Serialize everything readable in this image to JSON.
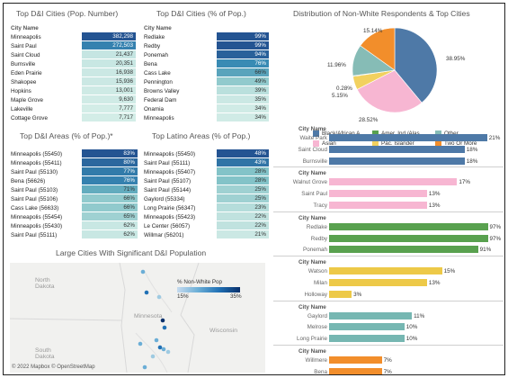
{
  "titles": {
    "t1": "Top D&I Cities (Pop. Number)",
    "t2": "Top D&I Cities (% of Pop.)",
    "t3": "Distribution of Non-White Respondents & Top Cities",
    "t4": "Top D&I Areas (% of Pop.)*",
    "t5": "Top Latino Areas (% of Pop.)",
    "t6": "Large Cities With Significant D&I Population"
  },
  "city_name_header": "City Name",
  "table_pop": {
    "rows": [
      {
        "name": "Minneapolis",
        "value": "382,298",
        "level": 1.0
      },
      {
        "name": "Saint Paul",
        "value": "272,503",
        "level": 0.72
      },
      {
        "name": "Saint Cloud",
        "value": "21,437",
        "level": 0.06
      },
      {
        "name": "Burnsville",
        "value": "20,351",
        "level": 0.05
      },
      {
        "name": "Eden Prairie",
        "value": "16,938",
        "level": 0.04
      },
      {
        "name": "Shakopee",
        "value": "15,936",
        "level": 0.04
      },
      {
        "name": "Hopkins",
        "value": "13,001",
        "level": 0.03
      },
      {
        "name": "Maple Grove",
        "value": "9,630",
        "level": 0.02
      },
      {
        "name": "Lakeville",
        "value": "7,777",
        "level": 0.01
      },
      {
        "name": "Cottage Grove",
        "value": "7,717",
        "level": 0.01
      }
    ]
  },
  "table_pct": {
    "rows": [
      {
        "name": "Redlake",
        "value": "99%",
        "level": 1.0
      },
      {
        "name": "Redby",
        "value": "99%",
        "level": 1.0
      },
      {
        "name": "Ponemah",
        "value": "94%",
        "level": 0.92
      },
      {
        "name": "Bena",
        "value": "76%",
        "level": 0.66
      },
      {
        "name": "Cass Lake",
        "value": "66%",
        "level": 0.5
      },
      {
        "name": "Pennington",
        "value": "49%",
        "level": 0.25
      },
      {
        "name": "Browns Valley",
        "value": "39%",
        "level": 0.1
      },
      {
        "name": "Federal Dam",
        "value": "35%",
        "level": 0.04
      },
      {
        "name": "Onamia",
        "value": "34%",
        "level": 0.02
      },
      {
        "name": "Minneapolis",
        "value": "34%",
        "level": 0.02
      }
    ]
  },
  "table_areas": {
    "rows": [
      {
        "name": "Minneapolis (55450)",
        "value": "83%",
        "level": 1.0
      },
      {
        "name": "Minneapolis (55411)",
        "value": "80%",
        "level": 0.88
      },
      {
        "name": "Saint Paul (55130)",
        "value": "77%",
        "level": 0.76
      },
      {
        "name": "Bena (56626)",
        "value": "76%",
        "level": 0.72
      },
      {
        "name": "Saint Paul (55103)",
        "value": "71%",
        "level": 0.45
      },
      {
        "name": "Saint Paul (55106)",
        "value": "66%",
        "level": 0.25
      },
      {
        "name": "Cass Lake (56633)",
        "value": "66%",
        "level": 0.25
      },
      {
        "name": "Minneapolis (55454)",
        "value": "65%",
        "level": 0.2
      },
      {
        "name": "Minneapolis (55430)",
        "value": "62%",
        "level": 0.05
      },
      {
        "name": "Saint Paul (55111)",
        "value": "62%",
        "level": 0.05
      }
    ]
  },
  "table_latino": {
    "rows": [
      {
        "name": "Minneapolis (55450)",
        "value": "48%",
        "level": 1.0
      },
      {
        "name": "Saint Paul (55111)",
        "value": "43%",
        "level": 0.8
      },
      {
        "name": "Minneapolis (55407)",
        "value": "28%",
        "level": 0.3
      },
      {
        "name": "Saint Paul (55107)",
        "value": "28%",
        "level": 0.3
      },
      {
        "name": "Saint Paul (55144)",
        "value": "25%",
        "level": 0.2
      },
      {
        "name": "Gaylord (55334)",
        "value": "25%",
        "level": 0.2
      },
      {
        "name": "Long Prairie (56347)",
        "value": "23%",
        "level": 0.12
      },
      {
        "name": "Minneapolis (55423)",
        "value": "22%",
        "level": 0.08
      },
      {
        "name": "Le Center (56057)",
        "value": "22%",
        "level": 0.08
      },
      {
        "name": "Willmar (56201)",
        "value": "21%",
        "level": 0.04
      }
    ]
  },
  "pie": {
    "slices": [
      {
        "label": "38.95%",
        "value": 38.95,
        "color": "#4e79a7"
      },
      {
        "label": "28.52%",
        "value": 28.52,
        "color": "#f7b6d2"
      },
      {
        "label": "5.15%",
        "value": 5.15,
        "color": "#f2d15f"
      },
      {
        "label": "0.28%",
        "value": 0.28,
        "color": "#6a9f4b"
      },
      {
        "label": "11.96%",
        "value": 11.96,
        "color": "#86bcb6"
      },
      {
        "label": "15.14%",
        "value": 15.14,
        "color": "#f28e2b"
      }
    ]
  },
  "legend": [
    {
      "label": "Black/African A..",
      "color": "#4e79a7"
    },
    {
      "label": "Amer. Ind./Alas..",
      "color": "#59a14f"
    },
    {
      "label": "Other",
      "color": "#86bcb6"
    },
    {
      "label": "Asian",
      "color": "#f7b6d2"
    },
    {
      "label": "Pac. Islander",
      "color": "#f2d15f"
    },
    {
      "label": "Two Or More",
      "color": "#f28e2b"
    }
  ],
  "bar_groups": [
    {
      "color": "#4e79a7",
      "rows": [
        {
          "name": "Waite Park",
          "value": 21,
          "label": "21%"
        },
        {
          "name": "Saint Cloud",
          "value": 18,
          "label": "18%"
        },
        {
          "name": "Burnsville",
          "value": 18,
          "label": "18%"
        }
      ]
    },
    {
      "color": "#f7b6d2",
      "rows": [
        {
          "name": "Walnut Grove",
          "value": 17,
          "label": "17%"
        },
        {
          "name": "Saint Paul",
          "value": 13,
          "label": "13%"
        },
        {
          "name": "Tracy",
          "value": 13,
          "label": "13%"
        }
      ]
    },
    {
      "color": "#59a14f",
      "rows": [
        {
          "name": "Redlake",
          "value": 97,
          "label": "97%"
        },
        {
          "name": "Redby",
          "value": 97,
          "label": "97%"
        },
        {
          "name": "Ponemah",
          "value": 91,
          "label": "91%"
        }
      ]
    },
    {
      "color": "#edc948",
      "rows": [
        {
          "name": "Watson",
          "value": 15,
          "label": "15%"
        },
        {
          "name": "Milan",
          "value": 13,
          "label": "13%"
        },
        {
          "name": "Holloway",
          "value": 3,
          "label": "3%"
        }
      ]
    },
    {
      "color": "#76b7b2",
      "rows": [
        {
          "name": "Gaylord",
          "value": 11,
          "label": "11%"
        },
        {
          "name": "Melrose",
          "value": 10,
          "label": "10%"
        },
        {
          "name": "Long Prairie",
          "value": 10,
          "label": "10%"
        }
      ]
    },
    {
      "color": "#f28e2b",
      "rows": [
        {
          "name": "Willmere",
          "value": 7,
          "label": "7%"
        },
        {
          "name": "Bena",
          "value": 7,
          "label": "7%"
        },
        {
          "name": "Cass Lake",
          "value": 6,
          "label": "6%"
        }
      ]
    }
  ],
  "map": {
    "legend_title": "% Non-White Pop",
    "legend_min": "15%",
    "legend_max": "35%",
    "labels": {
      "north_dakota": "North\nDakota",
      "minnesota": "Minnesota",
      "wisconsin": "Wisconsin",
      "south_dakota": "South\nDakota"
    },
    "credit": "© 2022 Mapbox © OpenStreetMap"
  }
}
